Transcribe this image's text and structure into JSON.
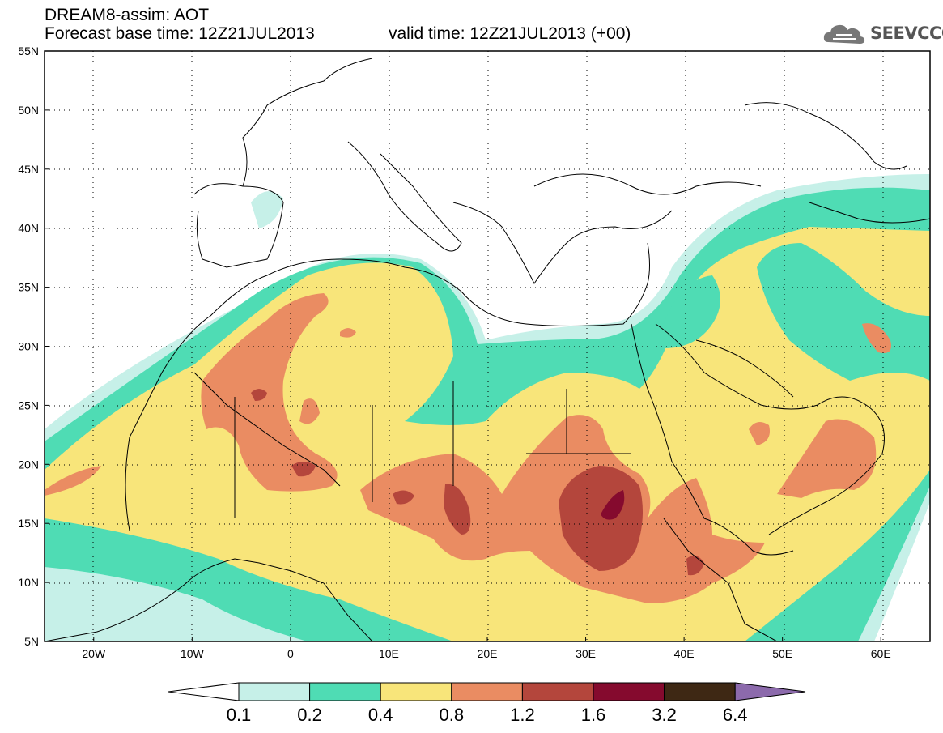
{
  "header": {
    "line1": "DREAM8-assim: AOT",
    "line2_base": "Forecast base time: 12Z21JUL2013",
    "line2_valid": "valid time: 12Z21JUL2013 (+00)"
  },
  "logo": {
    "text": "SEEVCCC",
    "icon": "cloud-icon"
  },
  "map": {
    "variable": "AOT",
    "lat_range": [
      5,
      55
    ],
    "lon_range": [
      -25,
      65
    ],
    "lat_labels": [
      "55N",
      "50N",
      "45N",
      "40N",
      "35N",
      "30N",
      "25N",
      "20N",
      "15N",
      "10N",
      "5N"
    ],
    "lon_labels": [
      "20W",
      "10W",
      "0",
      "10E",
      "20E",
      "30E",
      "40E",
      "50E",
      "60E"
    ],
    "gridlines": "dotted"
  },
  "colorbar": {
    "labels": [
      "0.1",
      "0.2",
      "0.4",
      "0.8",
      "1.2",
      "1.6",
      "3.2",
      "6.4"
    ],
    "colors": [
      "#c6f0e8",
      "#4fdcb4",
      "#f8e57a",
      "#ea8c62",
      "#b4463c",
      "#850a2e",
      "#3e2814"
    ],
    "under_color": "#ffffff",
    "over_color": "#8c6aac"
  }
}
